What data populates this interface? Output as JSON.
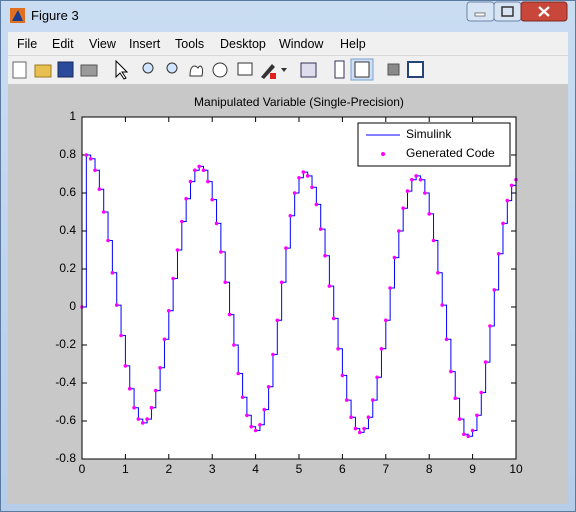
{
  "window": {
    "title": "Figure 3"
  },
  "menu": [
    "File",
    "Edit",
    "View",
    "Insert",
    "Tools",
    "Desktop",
    "Window",
    "Help"
  ],
  "chart_data": {
    "type": "line",
    "title": "Manipulated Variable (Single-Precision)",
    "x": [
      0,
      0.1,
      0.2,
      0.3,
      0.4,
      0.5,
      0.6,
      0.7,
      0.8,
      0.9,
      1,
      1.1,
      1.2,
      1.3,
      1.4,
      1.5,
      1.6,
      1.7,
      1.8,
      1.9,
      2,
      2.1,
      2.2,
      2.3,
      2.4,
      2.5,
      2.6,
      2.7,
      2.8,
      2.9,
      3,
      3.1,
      3.2,
      3.3,
      3.4,
      3.5,
      3.6,
      3.7,
      3.8,
      3.9,
      4,
      4.1,
      4.2,
      4.3,
      4.4,
      4.5,
      4.6,
      4.7,
      4.8,
      4.9,
      5,
      5.1,
      5.2,
      5.3,
      5.4,
      5.5,
      5.6,
      5.7,
      5.8,
      5.9,
      6,
      6.1,
      6.2,
      6.3,
      6.4,
      6.5,
      6.6,
      6.7,
      6.8,
      6.9,
      7,
      7.1,
      7.2,
      7.3,
      7.4,
      7.5,
      7.6,
      7.7,
      7.8,
      7.9,
      8,
      8.1,
      8.2,
      8.3,
      8.4,
      8.5,
      8.6,
      8.7,
      8.8,
      8.9,
      9,
      9.1,
      9.2,
      9.3,
      9.4,
      9.5,
      9.6,
      9.7,
      9.8,
      9.9,
      10
    ],
    "series": [
      {
        "name": "Simulink",
        "color": "#0000ff",
        "style": "stairs",
        "values": [
          0,
          0.8,
          0.78,
          0.72,
          0.62,
          0.5,
          0.35,
          0.18,
          0.01,
          -0.15,
          -0.31,
          -0.43,
          -0.53,
          -0.59,
          -0.61,
          -0.59,
          -0.53,
          -0.44,
          -0.32,
          -0.17,
          -0.02,
          0.15,
          0.3,
          0.45,
          0.57,
          0.66,
          0.72,
          0.74,
          0.72,
          0.66,
          0.565,
          0.44,
          0.29,
          0.13,
          -0.04,
          -0.2,
          -0.35,
          -0.475,
          -0.57,
          -0.63,
          -0.65,
          -0.62,
          -0.54,
          -0.42,
          -0.25,
          -0.07,
          0.13,
          0.31,
          0.48,
          0.6,
          0.68,
          0.71,
          0.69,
          0.63,
          0.54,
          0.41,
          0.27,
          0.11,
          -0.06,
          -0.22,
          -0.36,
          -0.49,
          -0.58,
          -0.64,
          -0.66,
          -0.64,
          -0.58,
          -0.49,
          -0.37,
          -0.22,
          -0.07,
          0.1,
          0.26,
          0.4,
          0.52,
          0.61,
          0.67,
          0.69,
          0.67,
          0.6,
          0.49,
          0.35,
          0.18,
          0.01,
          -0.17,
          -0.34,
          -0.48,
          -0.59,
          -0.67,
          -0.68,
          -0.65,
          -0.57,
          -0.45,
          -0.29,
          -0.1,
          0.09,
          0.28,
          0.44,
          0.56,
          0.64,
          0.67
        ]
      },
      {
        "name": "Generated Code",
        "color": "#ff00ff",
        "style": "dots",
        "values": [
          0,
          0.8,
          0.78,
          0.72,
          0.62,
          0.5,
          0.35,
          0.18,
          0.01,
          -0.15,
          -0.31,
          -0.43,
          -0.53,
          -0.59,
          -0.61,
          -0.59,
          -0.53,
          -0.44,
          -0.32,
          -0.17,
          -0.02,
          0.15,
          0.3,
          0.45,
          0.57,
          0.66,
          0.72,
          0.74,
          0.72,
          0.66,
          0.565,
          0.44,
          0.29,
          0.13,
          -0.04,
          -0.2,
          -0.35,
          -0.475,
          -0.57,
          -0.63,
          -0.65,
          -0.62,
          -0.54,
          -0.42,
          -0.25,
          -0.07,
          0.13,
          0.31,
          0.48,
          0.6,
          0.68,
          0.71,
          0.69,
          0.63,
          0.54,
          0.41,
          0.27,
          0.11,
          -0.06,
          -0.22,
          -0.36,
          -0.49,
          -0.58,
          -0.64,
          -0.66,
          -0.64,
          -0.58,
          -0.49,
          -0.37,
          -0.22,
          -0.07,
          0.1,
          0.26,
          0.4,
          0.52,
          0.61,
          0.67,
          0.69,
          0.67,
          0.6,
          0.49,
          0.35,
          0.18,
          0.01,
          -0.17,
          -0.34,
          -0.48,
          -0.59,
          -0.67,
          -0.68,
          -0.65,
          -0.57,
          -0.45,
          -0.29,
          -0.1,
          0.09,
          0.28,
          0.44,
          0.56,
          0.64,
          0.67
        ]
      }
    ],
    "xlim": [
      0,
      10
    ],
    "xticks": [
      0,
      1,
      2,
      3,
      4,
      5,
      6,
      7,
      8,
      9,
      10
    ],
    "ylim": [
      -0.8,
      1
    ],
    "yticks": [
      -0.8,
      -0.6,
      -0.4,
      -0.2,
      0,
      0.2,
      0.4,
      0.6,
      0.8,
      1
    ],
    "grid": false,
    "legend": "northeast"
  }
}
